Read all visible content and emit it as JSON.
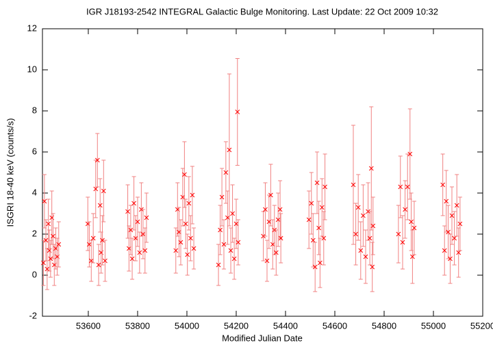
{
  "chart_data": {
    "type": "scatter",
    "title": "IGR J18193-2542   INTEGRAL Galactic Bulge Monitoring.  Last Update: 22 Oct 2009 10:32",
    "xlabel": "Modified Julian Date",
    "ylabel": "ISGRI 18-40 keV (counts/s)",
    "color": "#ff0000",
    "error_color": "#f08080",
    "xlim": [
      53414,
      55200
    ],
    "ylim": [
      -2,
      12
    ],
    "xticks": [
      53600,
      53800,
      54000,
      54200,
      54400,
      54600,
      54800,
      55000,
      55200
    ],
    "yticks": [
      -2,
      0,
      2,
      4,
      6,
      8,
      10,
      12
    ],
    "x": [
      53418,
      53422,
      53428,
      53433,
      53438,
      53442,
      53447,
      53452,
      53457,
      53462,
      53468,
      53474,
      53480,
      53598,
      53604,
      53612,
      53620,
      53630,
      53637,
      53642,
      53648,
      53652,
      53657,
      53662,
      53668,
      53760,
      53765,
      53772,
      53778,
      53785,
      53792,
      53800,
      53808,
      53815,
      53822,
      53830,
      53836,
      53955,
      53962,
      53968,
      53975,
      53983,
      53990,
      53995,
      54002,
      54008,
      54015,
      54022,
      54028,
      54128,
      54135,
      54142,
      54150,
      54158,
      54165,
      54172,
      54178,
      54185,
      54192,
      54200,
      54205,
      54208,
      54310,
      54318,
      54325,
      54333,
      54340,
      54348,
      54355,
      54362,
      54370,
      54378,
      54381,
      54495,
      54505,
      54512,
      54520,
      54528,
      54535,
      54540,
      54548,
      54555,
      54560,
      54675,
      54685,
      54695,
      54705,
      54715,
      54725,
      54735,
      54742,
      54748,
      54752,
      54755,
      54858,
      54866,
      54875,
      54885,
      54895,
      54905,
      54910,
      54915,
      54922,
      55038,
      55045,
      55052,
      55060,
      55068,
      55075,
      55085,
      55095,
      55102,
      55108
    ],
    "values": [
      0.6,
      3.6,
      1.7,
      0.3,
      2.5,
      1.2,
      0.8,
      2.8,
      1.9,
      0.5,
      1.3,
      0.9,
      1.5,
      2.5,
      1.5,
      0.7,
      1.8,
      4.2,
      5.6,
      0.5,
      3.4,
      1.1,
      1.7,
      4.1,
      0.7,
      3.1,
      1.3,
      2.2,
      0.8,
      3.5,
      1.8,
      2.6,
      1.1,
      3.2,
      2.0,
      1.2,
      2.8,
      1.2,
      3.2,
      2.1,
      1.6,
      3.8,
      4.9,
      2.5,
      1.0,
      3.5,
      1.8,
      3.9,
      1.3,
      0.5,
      2.2,
      3.8,
      1.5,
      5.0,
      2.8,
      6.1,
      1.2,
      3.0,
      0.8,
      2.5,
      7.95,
      1.6,
      1.9,
      3.2,
      0.7,
      2.6,
      3.9,
      1.5,
      2.2,
      1.1,
      2.7,
      3.2,
      1.8,
      2.7,
      3.5,
      1.7,
      0.4,
      4.5,
      2.3,
      0.6,
      3.3,
      1.8,
      4.3,
      4.4,
      2.0,
      3.3,
      1.2,
      2.9,
      0.9,
      3.1,
      1.8,
      5.2,
      0.4,
      2.4,
      2.0,
      4.3,
      1.6,
      3.2,
      4.3,
      5.9,
      2.6,
      0.9,
      2.3,
      4.4,
      1.2,
      3.6,
      2.1,
      0.8,
      2.9,
      1.8,
      3.4,
      1.1,
      2.5
    ],
    "errors": [
      1.1,
      1.3,
      1.0,
      1.0,
      1.2,
      1.0,
      0.9,
      1.3,
      1.1,
      1.0,
      1.0,
      0.9,
      1.1,
      1.3,
      1.1,
      1.0,
      1.2,
      1.4,
      1.3,
      1.0,
      1.3,
      1.0,
      1.2,
      1.5,
      1.0,
      1.3,
      1.1,
      1.2,
      1.0,
      1.3,
      1.1,
      1.2,
      1.0,
      1.3,
      1.2,
      1.1,
      1.2,
      1.1,
      1.3,
      1.2,
      1.1,
      1.4,
      1.6,
      1.2,
      1.0,
      1.3,
      1.1,
      1.4,
      1.0,
      1.0,
      1.2,
      1.4,
      1.2,
      1.5,
      1.3,
      3.7,
      1.1,
      1.4,
      1.0,
      1.2,
      2.6,
      1.1,
      1.2,
      1.3,
      1.0,
      1.3,
      1.5,
      1.2,
      1.2,
      1.1,
      1.3,
      1.4,
      1.2,
      1.4,
      1.5,
      1.3,
      1.2,
      1.5,
      1.3,
      1.2,
      1.4,
      1.3,
      1.6,
      2.9,
      1.5,
      1.6,
      1.4,
      1.5,
      1.3,
      1.4,
      1.3,
      3.0,
      1.2,
      1.4,
      1.4,
      1.5,
      1.3,
      1.4,
      1.6,
      2.2,
      1.4,
      1.3,
      1.3,
      1.5,
      1.2,
      1.5,
      1.3,
      1.2,
      1.4,
      1.3,
      1.5,
      1.2,
      1.3
    ]
  }
}
